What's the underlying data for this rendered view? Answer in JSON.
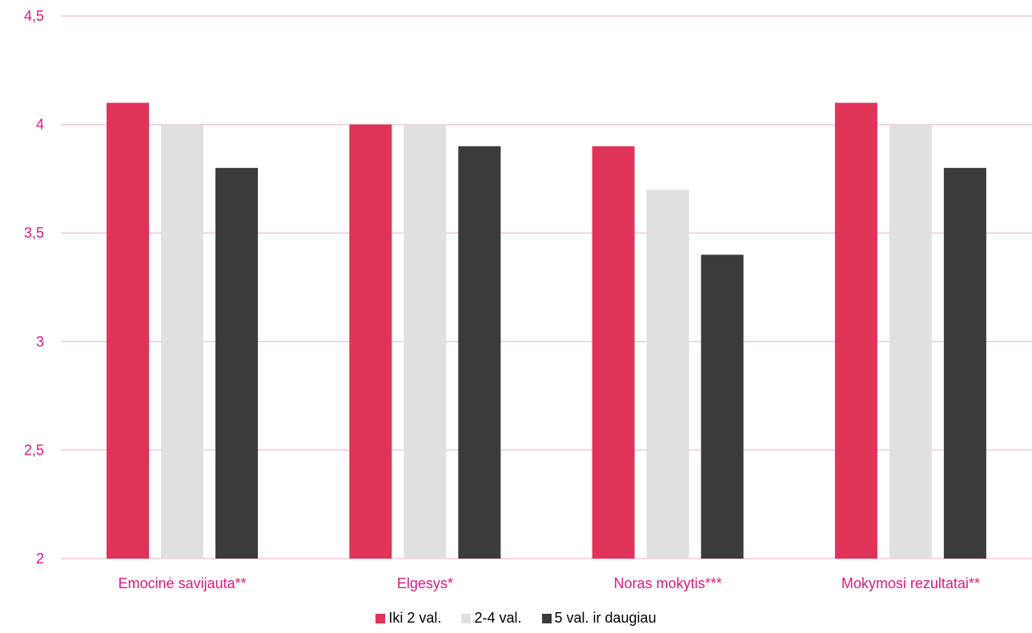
{
  "colors": {
    "text": "#e0197d",
    "grid": "#f5c6dc",
    "series": [
      "#e03358",
      "#e0e0e0",
      "#3b3b3b"
    ]
  },
  "chart_data": {
    "type": "bar",
    "categories": [
      "Emocinė savijauta**",
      "Elgesys*",
      "Noras mokytis***",
      "Mokymosi rezultatai**"
    ],
    "series": [
      {
        "name": "Iki 2 val.",
        "values": [
          4.1,
          4.0,
          3.9,
          4.1
        ]
      },
      {
        "name": "2-4 val.",
        "values": [
          4.0,
          4.0,
          3.7,
          4.0
        ]
      },
      {
        "name": "5 val. ir daugiau",
        "values": [
          3.8,
          3.9,
          3.4,
          3.8
        ]
      }
    ],
    "ylim": [
      2,
      4.5
    ],
    "yticks": [
      "2",
      "2,5",
      "3",
      "3,5",
      "4",
      "4,5"
    ],
    "grid": true,
    "legend_position": "bottom"
  }
}
